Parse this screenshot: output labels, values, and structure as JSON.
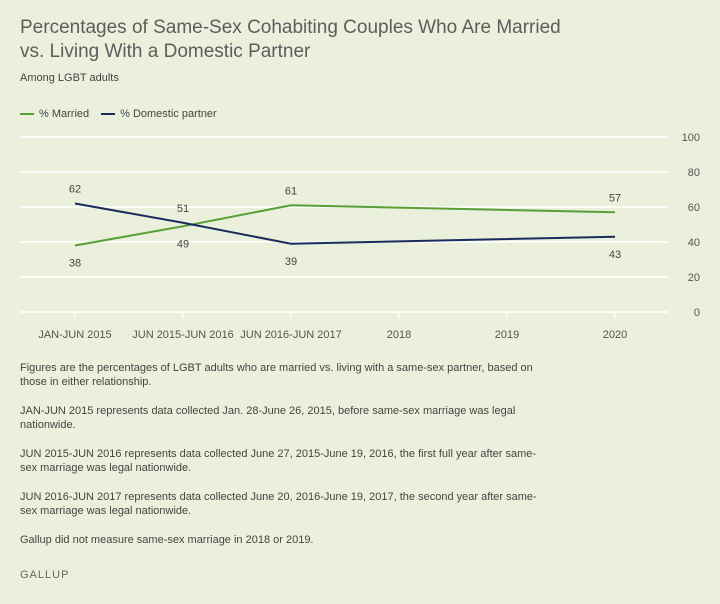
{
  "title": "Percentages of Same-Sex Cohabiting Couples Who Are Married vs. Living With a Domestic Partner",
  "subtitle": "Among LGBT adults",
  "notes": [
    "Figures are the percentages of LGBT adults who are married vs. living with a same-sex partner, based on those in either relationship.",
    "JAN-JUN 2015 represents data collected Jan. 28-June 26, 2015, before same-sex marriage was legal nationwide.",
    "JUN 2015-JUN 2016 represents data collected June 27, 2015-June 19, 2016, the first full year after same-sex marriage was legal nationwide.",
    "JUN 2016-JUN 2017 represents data collected June 20, 2016-June 19, 2017, the second year after same-sex marriage was legal nationwide.",
    "Gallup did not measure same-sex marriage in 2018 or 2019."
  ],
  "source": "GALLUP",
  "colors": {
    "married": "#5a9e36",
    "partner": "#1a2b5e",
    "grid": "#ffffff",
    "axis_text": "#555555"
  },
  "chart_data": {
    "type": "line",
    "categories": [
      "JAN-JUN 2015",
      "JUN 2015-JUN 2016",
      "JUN 2016-JUN 2017",
      "2018",
      "2019",
      "2020"
    ],
    "series": [
      {
        "name": "% Married",
        "values": [
          38,
          49,
          61,
          null,
          null,
          57
        ],
        "color": "#5a9e36"
      },
      {
        "name": "% Domestic partner",
        "values": [
          62,
          51,
          39,
          null,
          null,
          43
        ],
        "color": "#1a2b5e"
      }
    ],
    "ylim": [
      0,
      100
    ],
    "yticks": [
      0,
      20,
      40,
      60,
      80,
      100
    ],
    "grid": true,
    "legend": "top-left",
    "xlabel": "",
    "ylabel": ""
  }
}
